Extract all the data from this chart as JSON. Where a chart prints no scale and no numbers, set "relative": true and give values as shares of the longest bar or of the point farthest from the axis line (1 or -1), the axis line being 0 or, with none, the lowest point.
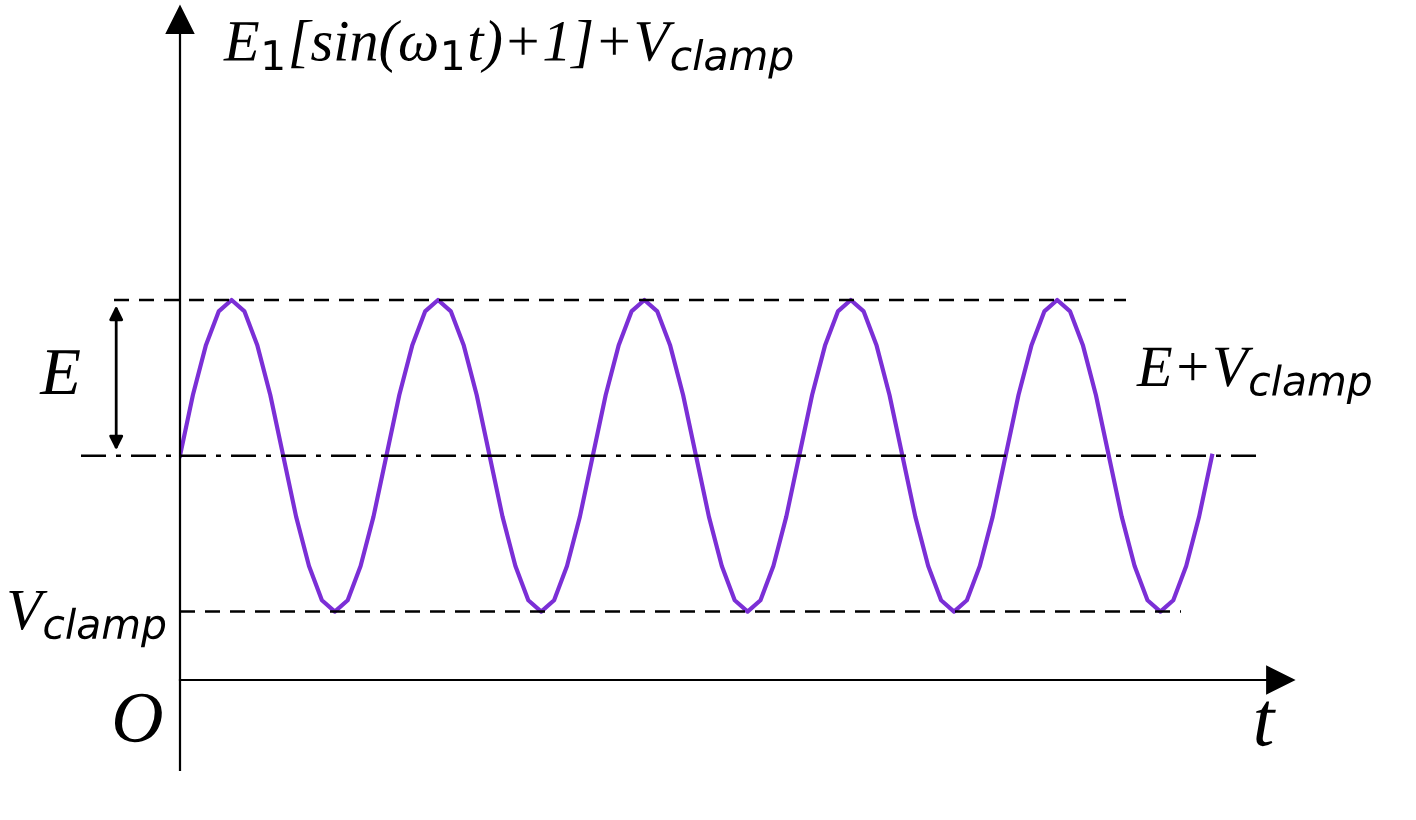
{
  "chart_data": {
    "type": "line",
    "relative": true,
    "ylabel": "E$_{1}$[sin(ω$_{1}$t)+1]+V$_{clamp}$",
    "xlabel": "t",
    "categories": [
      null,
      null,
      null,
      null,
      null,
      null,
      null,
      null,
      null,
      null,
      null,
      null,
      null,
      null,
      null,
      null,
      null,
      null,
      null,
      null,
      null,
      null,
      null,
      null,
      null,
      null,
      null,
      null,
      null,
      null,
      null,
      null,
      null,
      null,
      null,
      null,
      null,
      null,
      null,
      null,
      null,
      null,
      null,
      null,
      null,
      null,
      null,
      null,
      null,
      null,
      null,
      null,
      null,
      null,
      null,
      null,
      null,
      null,
      null,
      null,
      null,
      null,
      null,
      null,
      null,
      null,
      null,
      null,
      null,
      null,
      null,
      null,
      null,
      null,
      null,
      null,
      null,
      null,
      null,
      null,
      null
    ],
    "series": [
      {
        "color": "#7b2fd6",
        "values": [
          0.59,
          0.75,
          0.88,
          0.97,
          1,
          0.97,
          0.88,
          0.75,
          0.59,
          0.43,
          0.3,
          0.21,
          0.18,
          0.21,
          0.3,
          0.43,
          0.59,
          0.75,
          0.88,
          0.97,
          1,
          0.97,
          0.88,
          0.75,
          0.59,
          0.43,
          0.3,
          0.21,
          0.18,
          0.21,
          0.3,
          0.43,
          0.59,
          0.75,
          0.88,
          0.97,
          1,
          0.97,
          0.88,
          0.75,
          0.59,
          0.43,
          0.3,
          0.21,
          0.18,
          0.21,
          0.3,
          0.43,
          0.59,
          0.75,
          0.88,
          0.97,
          1,
          0.97,
          0.88,
          0.75,
          0.59,
          0.43,
          0.3,
          0.21,
          0.18,
          0.21,
          0.3,
          0.43,
          0.59,
          0.75,
          0.88,
          0.97,
          1,
          0.97,
          0.88,
          0.75,
          0.59,
          0.43,
          0.3,
          0.21,
          0.18,
          0.21,
          0.3,
          0.43,
          0.59
        ]
      }
    ],
    "ref_lines": [
      {
        "axis": "y",
        "value": 1,
        "label": "E+V$_{clamp}$",
        "line_style": "dashed",
        "color": "#000000"
      },
      {
        "axis": "y",
        "value": 0.59,
        "line_style": "dashdot",
        "color": "#000000"
      },
      {
        "axis": "y",
        "value": 0.18,
        "label": "V$_{clamp}$",
        "line_style": "dashed",
        "color": "#000000"
      }
    ],
    "annotations": [
      "E",
      "O"
    ],
    "tick_labels": false,
    "legend": false
  }
}
